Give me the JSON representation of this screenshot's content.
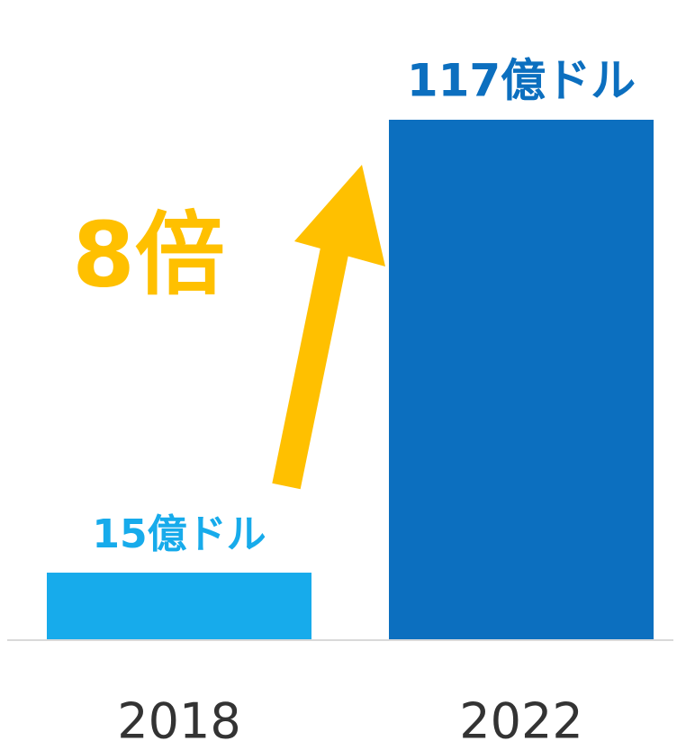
{
  "chart_data": {
    "type": "bar",
    "categories": [
      "2018",
      "2022"
    ],
    "values": [
      15,
      117
    ],
    "value_labels": [
      "15億ドル",
      "117億ドル"
    ],
    "colors": [
      "#17abeb",
      "#0c6fbf"
    ],
    "ylim": [
      0,
      117
    ],
    "annotation": "8倍"
  }
}
